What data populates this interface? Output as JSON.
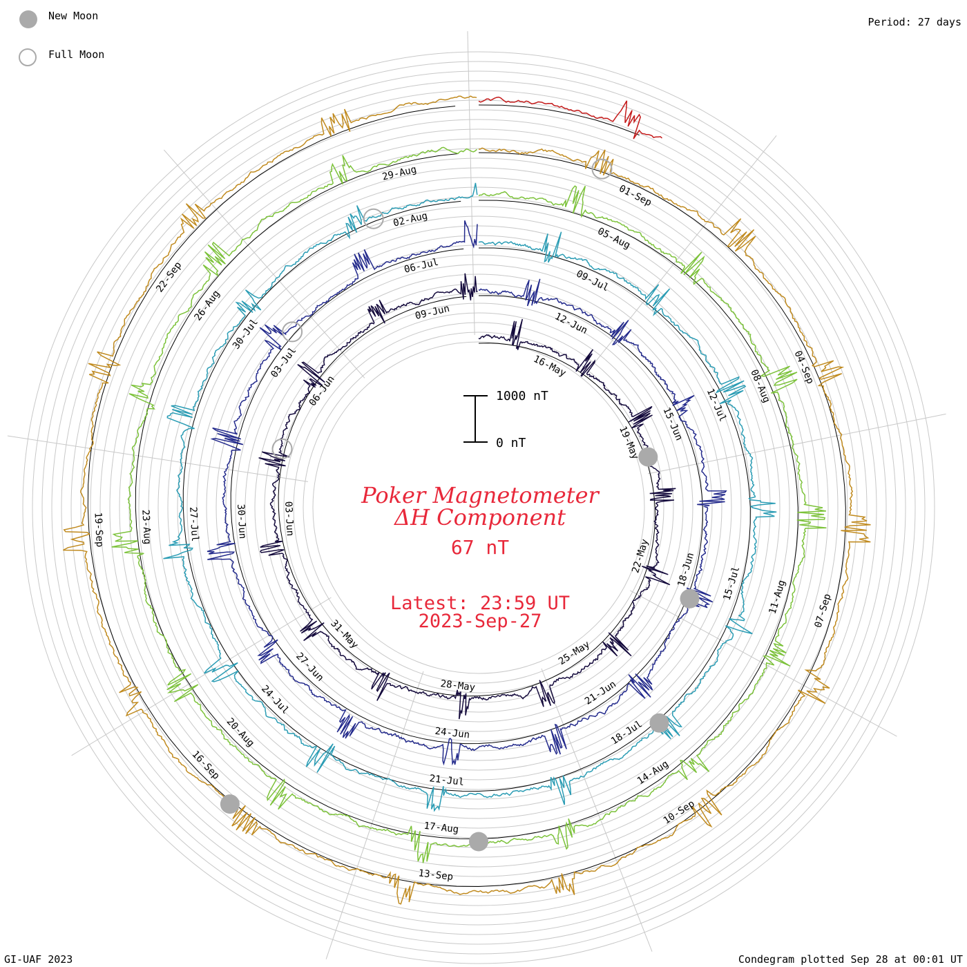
{
  "header": {
    "period_label": "Period: 27 days",
    "legend": [
      {
        "label": "New Moon",
        "style": "filled",
        "color": "#aaaaaa"
      },
      {
        "label": "Full Moon",
        "style": "open",
        "color": "#aaaaaa"
      }
    ]
  },
  "title": {
    "line1": "Poker Magnetometer",
    "line2": "ΔH Component",
    "value": "67 nT",
    "latest_line1": "Latest: 23:59 UT",
    "latest_line2": "2023-Sep-27"
  },
  "scale": {
    "top_label": "1000 nT",
    "bottom_label": "0 nT"
  },
  "footer": {
    "left": "GI-UAF 2023",
    "right": "Condegram plotted Sep 28 at 00:01 UT"
  },
  "chart_data": {
    "type": "line",
    "title": "Poker Magnetometer ΔH Component",
    "period_days": 27,
    "start_date": "2023-05-14",
    "end_date": "2023-09-27",
    "latest_value_nT": 67,
    "scale_bar_nT": [
      0,
      1000
    ],
    "grid": true,
    "series": [
      {
        "turn": 1,
        "date_range": [
          "2023-05-14",
          "2023-06-09"
        ],
        "color": "#140a3c",
        "date_labels": [
          "16-May",
          "19-May",
          "22-May",
          "25-May",
          "28-May",
          "31-May",
          "03-Jun",
          "06-Jun",
          "09-Jun"
        ]
      },
      {
        "turn": 2,
        "date_range": [
          "2023-06-10",
          "2023-07-06"
        ],
        "color": "#232a8c",
        "date_labels": [
          "12-Jun",
          "15-Jun",
          "18-Jun",
          "21-Jun",
          "24-Jun",
          "27-Jun",
          "30-Jun",
          "03-Jul",
          "06-Jul"
        ]
      },
      {
        "turn": 3,
        "date_range": [
          "2023-07-07",
          "2023-08-02"
        ],
        "color": "#2a9cb4",
        "date_labels": [
          "09-Jul",
          "12-Jul",
          "15-Jul",
          "18-Jul",
          "21-Jul",
          "24-Jul",
          "27-Jul",
          "30-Jul",
          "02-Aug"
        ]
      },
      {
        "turn": 4,
        "date_range": [
          "2023-08-03",
          "2023-08-29"
        ],
        "color": "#7cc23a",
        "date_labels": [
          "05-Aug",
          "08-Aug",
          "11-Aug",
          "14-Aug",
          "17-Aug",
          "20-Aug",
          "23-Aug",
          "26-Aug",
          "29-Aug"
        ]
      },
      {
        "turn": 5,
        "date_range": [
          "2023-08-30",
          "2023-09-25"
        ],
        "color": "#c08a1e",
        "date_labels": [
          "01-Sep",
          "04-Sep",
          "07-Sep",
          "10-Sep",
          "13-Sep",
          "16-Sep",
          "19-Sep",
          "22-Sep"
        ]
      },
      {
        "turn": 6,
        "date_range": [
          "2023-09-26",
          "2023-09-27"
        ],
        "color": "#c41a1a",
        "date_labels": []
      }
    ],
    "new_moons": [
      "2023-05-19",
      "2023-06-18",
      "2023-07-17",
      "2023-08-16",
      "2023-09-15"
    ],
    "full_moons": [
      "2023-06-04",
      "2023-07-03",
      "2023-08-01",
      "2023-08-31"
    ]
  }
}
